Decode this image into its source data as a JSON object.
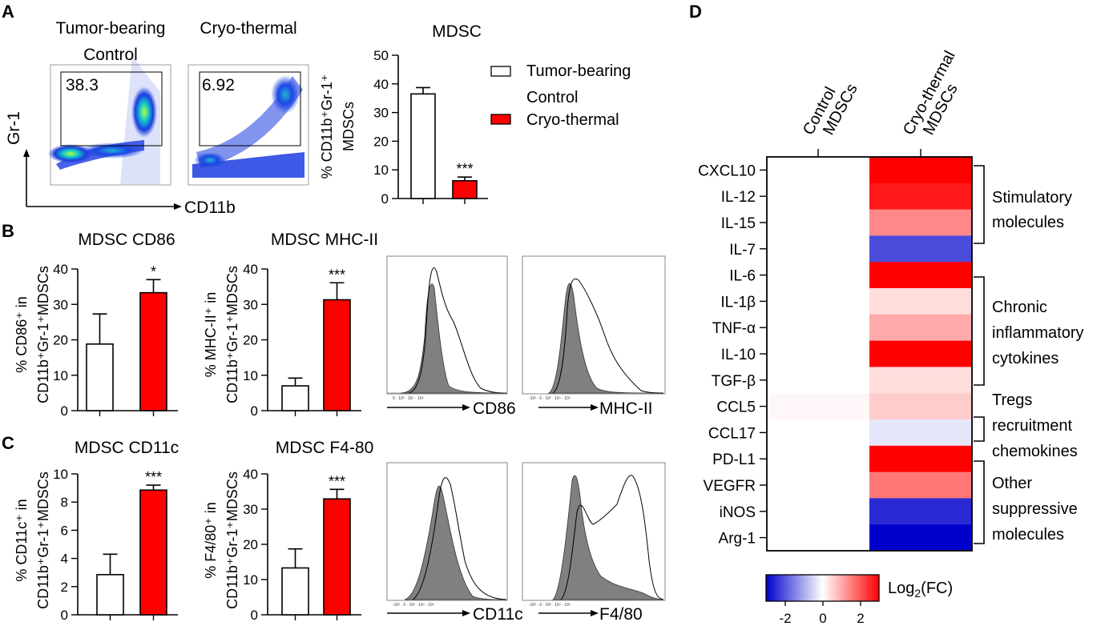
{
  "panels": {
    "A": {
      "letter": "A",
      "flow_titles": [
        "Tumor-bearing",
        "Control",
        "Cryo-thermal"
      ],
      "gate_values": [
        "38.3",
        "6.92"
      ],
      "y_axis_marker": "Gr-1",
      "x_axis_marker": "CD11b",
      "legend": [
        "Tumor-bearing",
        "Control",
        "Cryo-thermal"
      ]
    },
    "B": {
      "letter": "B",
      "hist_x_labels": [
        "CD86",
        "MHC-II"
      ]
    },
    "C": {
      "letter": "C",
      "hist_x_labels": [
        "CD11c",
        "F4/80"
      ]
    },
    "D": {
      "letter": "D",
      "col_labels": [
        [
          "Control",
          "MDSCs"
        ],
        [
          "Cryo-thermal",
          "MDSCs"
        ]
      ],
      "rows": [
        "CXCL10",
        "IL-12",
        "IL-15",
        "IL-7",
        "IL-6",
        "IL-1β",
        "TNF-α",
        "IL-10",
        "TGF-β",
        "CCL5",
        "CCL17",
        "PD-L1",
        "VEGFR",
        "iNOS",
        "Arg-1"
      ],
      "control_values": [
        0,
        0,
        0,
        0,
        0,
        0,
        0,
        0,
        0,
        0.1,
        0,
        0,
        0,
        0,
        0
      ],
      "cryo_values": [
        3,
        2.7,
        1.4,
        -2.1,
        3,
        0.4,
        1.0,
        3,
        0.4,
        0.6,
        -0.3,
        3,
        1.6,
        -2.5,
        -3
      ],
      "groups": [
        [
          "Stimulatory",
          "molecules"
        ],
        [
          "Chronic",
          "inflammatory",
          "cytokines"
        ],
        [
          "Tregs",
          "recruitment",
          "chemokines"
        ],
        [
          "Other",
          "suppressive",
          "molecules"
        ]
      ],
      "colorbar_ticks": [
        "-2",
        "0",
        "2"
      ],
      "colorbar_label": "Log",
      "colorbar_sub": "2",
      "colorbar_suffix": "(FC)"
    }
  },
  "chart_data": [
    {
      "type": "bar",
      "title": "MDSC",
      "categories": [
        "Tumor-bearing Control",
        "Cryo-thermal"
      ],
      "values": [
        36.5,
        6.2
      ],
      "errors": [
        2.2,
        1.3
      ],
      "significance": "***",
      "ylabel_lines": [
        "% CD11b⁺Gr-1⁺",
        "MDSCs"
      ],
      "ylim": [
        0,
        50
      ],
      "yticks": [
        0,
        10,
        20,
        30,
        40,
        50
      ],
      "ytick_labels": [
        "0",
        "10",
        "20",
        "30",
        "40",
        "50"
      ],
      "colors": [
        "#ffffff",
        "#ff0000"
      ]
    },
    {
      "type": "bar",
      "title": "MDSC CD86",
      "categories": [
        "Tumor-bearing Control",
        "Cryo-thermal"
      ],
      "values": [
        18.8,
        33.3
      ],
      "errors": [
        8.5,
        3.7
      ],
      "significance": "*",
      "ylabel_lines": [
        "% CD86⁺ in",
        "CD11b⁺Gr-1⁺MDSCs"
      ],
      "ylim": [
        0,
        40
      ],
      "yticks": [
        0,
        10,
        20,
        30,
        40
      ],
      "ytick_labels": [
        "0",
        "10",
        "20",
        "30",
        "40"
      ],
      "colors": [
        "#ffffff",
        "#ff0000"
      ]
    },
    {
      "type": "bar",
      "title": "MDSC MHC-II",
      "categories": [
        "Tumor-bearing Control",
        "Cryo-thermal"
      ],
      "values": [
        7,
        31.3
      ],
      "errors": [
        2.2,
        4.8
      ],
      "significance": "***",
      "ylabel_lines": [
        "% MHC-II⁺ in",
        "CD11b⁺Gr-1⁺MDSCs"
      ],
      "ylim": [
        0,
        40
      ],
      "yticks": [
        0,
        10,
        20,
        30,
        40
      ],
      "ytick_labels": [
        "0",
        "10",
        "20",
        "30",
        "40"
      ],
      "colors": [
        "#ffffff",
        "#ff0000"
      ]
    },
    {
      "type": "bar",
      "title": "MDSC CD11c",
      "categories": [
        "Tumor-bearing Control",
        "Cryo-thermal"
      ],
      "values": [
        2.85,
        8.85
      ],
      "errors": [
        1.45,
        0.35
      ],
      "significance": "***",
      "ylabel_lines": [
        "% CD11c⁺ in",
        "CD11b⁺Gr-1⁺MDSCs"
      ],
      "ylim": [
        0,
        10
      ],
      "yticks": [
        0,
        2,
        4,
        6,
        8,
        10
      ],
      "ytick_labels": [
        "0",
        "2",
        "4",
        "6",
        "8",
        "10"
      ],
      "colors": [
        "#ffffff",
        "#ff0000"
      ]
    },
    {
      "type": "bar",
      "title": "MDSC F4-80",
      "categories": [
        "Tumor-bearing Control",
        "Cryo-thermal"
      ],
      "values": [
        13.3,
        32.9
      ],
      "errors": [
        5.4,
        2.7
      ],
      "significance": "***",
      "ylabel_lines": [
        "% F4/80⁺ in",
        "CD11b⁺Gr-1⁺MDSCs"
      ],
      "ylim": [
        0,
        40
      ],
      "yticks": [
        0,
        10,
        20,
        30,
        40
      ],
      "ytick_labels": [
        "0",
        "10",
        "20",
        "30",
        "40"
      ],
      "colors": [
        "#ffffff",
        "#ff0000"
      ]
    },
    {
      "type": "heatmap",
      "title": "",
      "rows": [
        "CXCL10",
        "IL-12",
        "IL-15",
        "IL-7",
        "IL-6",
        "IL-1β",
        "TNF-α",
        "IL-10",
        "TGF-β",
        "CCL5",
        "CCL17",
        "PD-L1",
        "VEGFR",
        "iNOS",
        "Arg-1"
      ],
      "columns": [
        "Control MDSCs",
        "Cryo-thermal MDSCs"
      ],
      "values": [
        [
          0,
          3
        ],
        [
          0,
          2.7
        ],
        [
          0,
          1.4
        ],
        [
          0,
          -2.1
        ],
        [
          0,
          3
        ],
        [
          0,
          0.4
        ],
        [
          0,
          1.0
        ],
        [
          0,
          3
        ],
        [
          0,
          0.4
        ],
        [
          0.1,
          0.6
        ],
        [
          0,
          -0.3
        ],
        [
          0,
          3
        ],
        [
          0,
          1.6
        ],
        [
          0,
          -2.5
        ],
        [
          0,
          -3
        ]
      ],
      "color_range": [
        -3,
        3
      ],
      "colorbar_ticks": [
        -2,
        0,
        2
      ]
    }
  ]
}
